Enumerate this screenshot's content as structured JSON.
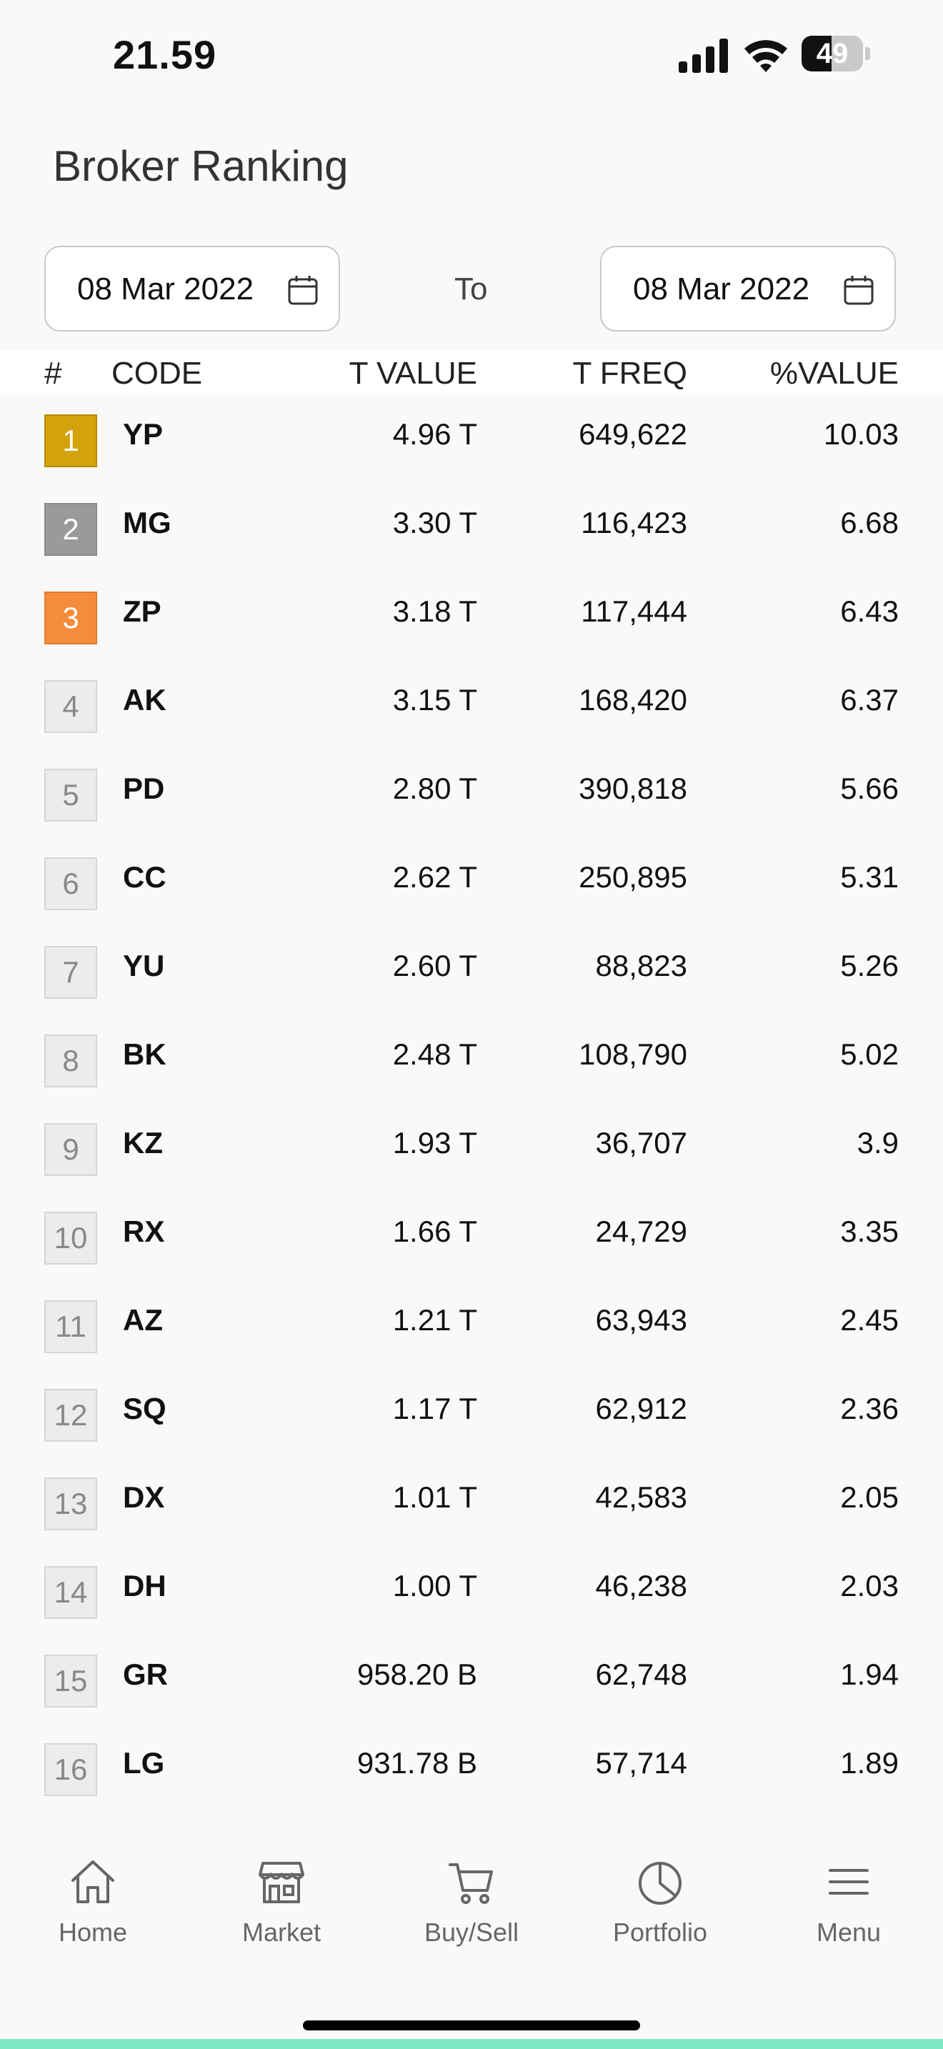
{
  "status_bar": {
    "time": "21.59",
    "battery": "49",
    "battery_level": 0.49
  },
  "page": {
    "title": "Broker Ranking"
  },
  "date_range": {
    "from": "08 Mar 2022",
    "separator": "To",
    "to": "08 Mar 2022"
  },
  "table": {
    "columns": {
      "rank": "#",
      "code": "CODE",
      "tvalue": "T VALUE",
      "tfreq": "T FREQ",
      "pvalue": "%VALUE"
    },
    "rows": [
      {
        "rank": "1",
        "code": "YP",
        "tvalue": "4.96 T",
        "tfreq": "649,622",
        "pvalue": "10.03"
      },
      {
        "rank": "2",
        "code": "MG",
        "tvalue": "3.30 T",
        "tfreq": "116,423",
        "pvalue": "6.68"
      },
      {
        "rank": "3",
        "code": "ZP",
        "tvalue": "3.18 T",
        "tfreq": "117,444",
        "pvalue": "6.43"
      },
      {
        "rank": "4",
        "code": "AK",
        "tvalue": "3.15 T",
        "tfreq": "168,420",
        "pvalue": "6.37"
      },
      {
        "rank": "5",
        "code": "PD",
        "tvalue": "2.80 T",
        "tfreq": "390,818",
        "pvalue": "5.66"
      },
      {
        "rank": "6",
        "code": "CC",
        "tvalue": "2.62 T",
        "tfreq": "250,895",
        "pvalue": "5.31"
      },
      {
        "rank": "7",
        "code": "YU",
        "tvalue": "2.60 T",
        "tfreq": "88,823",
        "pvalue": "5.26"
      },
      {
        "rank": "8",
        "code": "BK",
        "tvalue": "2.48 T",
        "tfreq": "108,790",
        "pvalue": "5.02"
      },
      {
        "rank": "9",
        "code": "KZ",
        "tvalue": "1.93 T",
        "tfreq": "36,707",
        "pvalue": "3.9"
      },
      {
        "rank": "10",
        "code": "RX",
        "tvalue": "1.66 T",
        "tfreq": "24,729",
        "pvalue": "3.35"
      },
      {
        "rank": "11",
        "code": "AZ",
        "tvalue": "1.21 T",
        "tfreq": "63,943",
        "pvalue": "2.45"
      },
      {
        "rank": "12",
        "code": "SQ",
        "tvalue": "1.17 T",
        "tfreq": "62,912",
        "pvalue": "2.36"
      },
      {
        "rank": "13",
        "code": "DX",
        "tvalue": "1.01 T",
        "tfreq": "42,583",
        "pvalue": "2.05"
      },
      {
        "rank": "14",
        "code": "DH",
        "tvalue": "1.00 T",
        "tfreq": "46,238",
        "pvalue": "2.03"
      },
      {
        "rank": "15",
        "code": "GR",
        "tvalue": "958.20 B",
        "tfreq": "62,748",
        "pvalue": "1.94"
      },
      {
        "rank": "16",
        "code": "LG",
        "tvalue": "931.78 B",
        "tfreq": "57,714",
        "pvalue": "1.89"
      }
    ]
  },
  "nav": {
    "items": [
      {
        "label": "Home",
        "icon": "home-icon"
      },
      {
        "label": "Market",
        "icon": "store-icon"
      },
      {
        "label": "Buy/Sell",
        "icon": "cart-icon"
      },
      {
        "label": "Portfolio",
        "icon": "pie-chart-icon"
      },
      {
        "label": "Menu",
        "icon": "menu-icon"
      }
    ]
  },
  "colors": {
    "gold": "#d4a20b",
    "silver": "#9a9a9a",
    "bronze": "#f58c3c",
    "accent_strip": "#7fe7c6"
  }
}
